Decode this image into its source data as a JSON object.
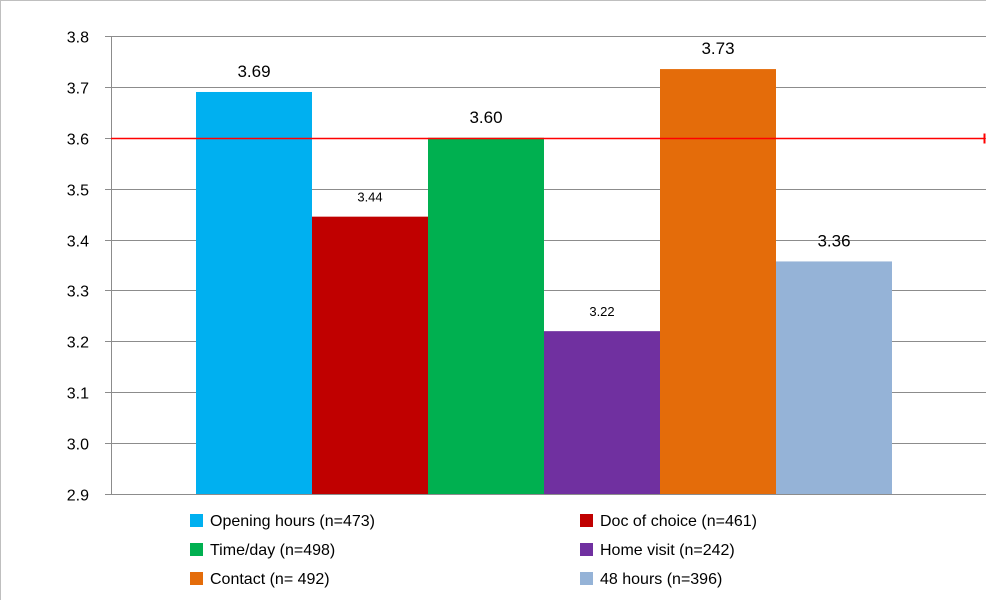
{
  "chart_data": {
    "type": "bar",
    "categories": [
      "Opening hours (n=473)",
      "Doc of choice (n=461)",
      "Time/day (n=498)",
      "Home visit (n=242)",
      "Contact (n= 492)",
      "48 hours (n=396)"
    ],
    "values": [
      3.69,
      3.445,
      3.6,
      3.22,
      3.735,
      3.357
    ],
    "value_labels": [
      "3.69",
      "3.44",
      "3.60",
      "3.22",
      "3.73",
      "3.36"
    ],
    "colors": [
      "#00b0f0",
      "#c00000",
      "#00b050",
      "#7030a0",
      "#e46c0a",
      "#95b3d7"
    ],
    "ylim": [
      2.9,
      3.8
    ],
    "yticks": [
      2.9,
      3.0,
      3.1,
      3.2,
      3.3,
      3.4,
      3.5,
      3.6,
      3.7,
      3.8
    ],
    "ytick_labels": [
      "2.9",
      "3.0",
      "3.1",
      "3.2",
      "3.3",
      "3.4",
      "3.5",
      "3.6",
      "3.7",
      "3.8"
    ],
    "reference_line": {
      "value": 3.6,
      "color": "#ff0000"
    },
    "grid": true,
    "legend_position": "bottom",
    "title": "",
    "xlabel": "",
    "ylabel": ""
  }
}
